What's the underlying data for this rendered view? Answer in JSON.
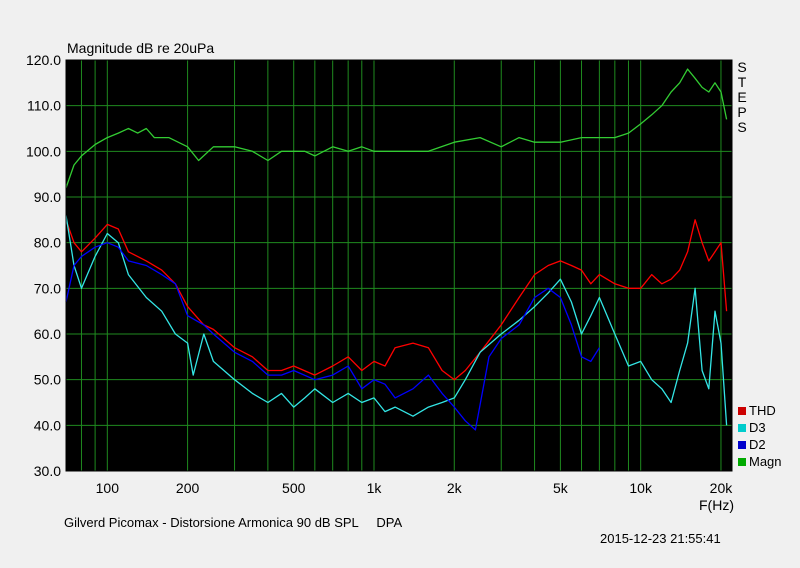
{
  "title": "Magnitude dB re 20uPa",
  "side_label": [
    "S",
    "T",
    "E",
    "P",
    "S"
  ],
  "footer_left": "Gilverd Picomax - Distorsione Armonica 90 dB SPL     DPA",
  "footer_right": "2015-12-23 21:55:41",
  "x_axis_label": "F(Hz)",
  "colors": {
    "background": "#000000",
    "grid": "#1f8a1f",
    "THD": "#ff0000",
    "D3": "#33e5e5",
    "D2": "#0000ff",
    "Magn": "#33cc33"
  },
  "legend": [
    {
      "name": "THD",
      "color": "#cc0000"
    },
    {
      "name": "D3",
      "color": "#00cccc"
    },
    {
      "name": "D2",
      "color": "#0000cc"
    },
    {
      "name": "Magn",
      "color": "#00aa00"
    }
  ],
  "chart_data": {
    "type": "line",
    "title": "Magnitude dB re 20uPa",
    "xlabel": "F(Hz)",
    "ylabel": "",
    "x_scale": "log",
    "xlim": [
      70,
      22000
    ],
    "ylim": [
      30,
      120
    ],
    "grid": true,
    "legend_position": "bottom-right",
    "y_ticks": [
      "30.0",
      "40.0",
      "50.0",
      "60.0",
      "70.0",
      "80.0",
      "90.0",
      "100.0",
      "110.0",
      "120.0"
    ],
    "x_ticks": [
      {
        "value": 100,
        "label": "100"
      },
      {
        "value": 200,
        "label": "200"
      },
      {
        "value": 500,
        "label": "500"
      },
      {
        "value": 1000,
        "label": "1k"
      },
      {
        "value": 2000,
        "label": "2k"
      },
      {
        "value": 5000,
        "label": "5k"
      },
      {
        "value": 10000,
        "label": "10k"
      },
      {
        "value": 20000,
        "label": "20k"
      }
    ],
    "series": [
      {
        "name": "Magn",
        "x": [
          70,
          75,
          80,
          90,
          100,
          110,
          120,
          130,
          140,
          150,
          170,
          200,
          220,
          250,
          300,
          350,
          400,
          450,
          500,
          550,
          600,
          700,
          800,
          900,
          1000,
          1200,
          1400,
          1600,
          2000,
          2500,
          3000,
          3500,
          4000,
          5000,
          6000,
          7000,
          8000,
          9000,
          10000,
          11000,
          12000,
          13000,
          14000,
          15000,
          16000,
          17000,
          18000,
          19000,
          20000,
          21000
        ],
        "y": [
          92,
          97,
          99,
          101.5,
          103,
          104,
          105,
          104,
          105,
          103,
          103,
          101,
          98,
          101,
          101,
          100,
          98,
          100,
          100,
          100,
          99,
          101,
          100,
          101,
          100,
          100,
          100,
          100,
          102,
          103,
          101,
          103,
          102,
          102,
          103,
          103,
          103,
          104,
          106,
          108,
          110,
          113,
          115,
          118,
          116,
          114,
          113,
          115,
          113,
          107
        ]
      },
      {
        "name": "THD",
        "x": [
          70,
          75,
          80,
          90,
          100,
          110,
          120,
          140,
          160,
          180,
          200,
          230,
          250,
          300,
          350,
          400,
          450,
          500,
          600,
          700,
          800,
          900,
          1000,
          1100,
          1200,
          1400,
          1600,
          1800,
          2000,
          2200,
          2500,
          3000,
          3500,
          4000,
          4500,
          5000,
          5500,
          6000,
          6500,
          7000,
          8000,
          9000,
          10000,
          11000,
          12000,
          13000,
          14000,
          15000,
          16000,
          17000,
          18000,
          19000,
          20000,
          21000
        ],
        "y": [
          85,
          80,
          78,
          81,
          84,
          83,
          78,
          76,
          74,
          71,
          66,
          62,
          61,
          57,
          55,
          52,
          52,
          53,
          51,
          53,
          55,
          52,
          54,
          53,
          57,
          58,
          57,
          52,
          50,
          52,
          56,
          62,
          68,
          73,
          75,
          76,
          75,
          74,
          71,
          73,
          71,
          70,
          70,
          73,
          71,
          72,
          74,
          78,
          85,
          80,
          76,
          78,
          80,
          65
        ]
      },
      {
        "name": "D3",
        "x": [
          70,
          75,
          80,
          90,
          100,
          110,
          120,
          140,
          160,
          180,
          200,
          210,
          230,
          250,
          300,
          350,
          400,
          450,
          500,
          550,
          600,
          700,
          800,
          900,
          1000,
          1100,
          1200,
          1400,
          1600,
          1800,
          2000,
          2200,
          2500,
          3000,
          3500,
          4000,
          4500,
          5000,
          5500,
          6000,
          6500,
          7000,
          8000,
          9000,
          10000,
          11000,
          12000,
          13000,
          14000,
          15000,
          16000,
          17000,
          18000,
          19000,
          20000,
          21000
        ],
        "y": [
          86,
          75,
          70,
          77,
          82,
          80,
          73,
          68,
          65,
          60,
          58,
          51,
          60,
          54,
          50,
          47,
          45,
          47,
          44,
          46,
          48,
          45,
          47,
          45,
          46,
          43,
          44,
          42,
          44,
          45,
          46,
          50,
          56,
          60,
          63,
          66,
          69,
          72,
          67,
          60,
          64,
          68,
          60,
          53,
          54,
          50,
          48,
          45,
          52,
          58,
          70,
          52,
          48,
          65,
          58,
          40
        ]
      },
      {
        "name": "D2",
        "x": [
          70,
          75,
          80,
          90,
          100,
          110,
          120,
          140,
          160,
          180,
          200,
          230,
          250,
          300,
          350,
          400,
          450,
          500,
          600,
          700,
          800,
          900,
          1000,
          1100,
          1200,
          1400,
          1600,
          1800,
          2000,
          2200,
          2400,
          2700,
          3000,
          3500,
          4000,
          4500,
          5000,
          5500,
          6000,
          6500,
          7000
        ],
        "y": [
          67,
          75,
          77,
          79,
          80,
          79,
          76,
          75,
          73,
          71,
          64,
          62,
          60,
          56,
          54,
          51,
          51,
          52,
          50,
          51,
          53,
          48,
          50,
          49,
          46,
          48,
          51,
          47,
          44,
          41,
          39,
          55,
          59,
          62,
          68,
          70,
          68,
          62,
          55,
          54,
          57
        ]
      }
    ]
  }
}
